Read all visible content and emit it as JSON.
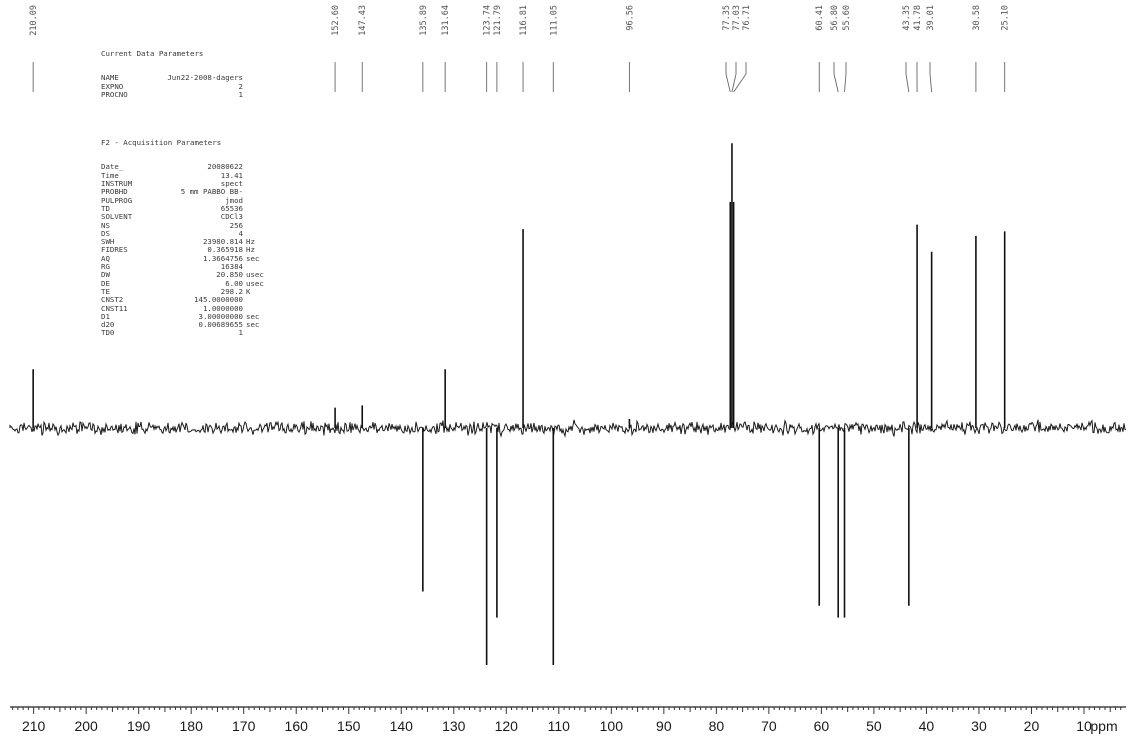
{
  "parameters": {
    "current_heading": "Current Data Parameters",
    "current": [
      {
        "key": "NAME",
        "value": "Jun22-2008-dagers",
        "unit": ""
      },
      {
        "key": "EXPNO",
        "value": "2",
        "unit": ""
      },
      {
        "key": "PROCNO",
        "value": "1",
        "unit": ""
      }
    ],
    "acq_heading": "F2 - Acquisition Parameters",
    "acquisition": [
      {
        "key": "Date_",
        "value": "20080622",
        "unit": ""
      },
      {
        "key": "Time",
        "value": "13.41",
        "unit": ""
      },
      {
        "key": "INSTRUM",
        "value": "spect",
        "unit": ""
      },
      {
        "key": "PROBHD",
        "value": "5 mm PABBO BB-",
        "unit": ""
      },
      {
        "key": "PULPROG",
        "value": "jmod",
        "unit": ""
      },
      {
        "key": "TD",
        "value": "65536",
        "unit": ""
      },
      {
        "key": "SOLVENT",
        "value": "CDCl3",
        "unit": ""
      },
      {
        "key": "NS",
        "value": "256",
        "unit": ""
      },
      {
        "key": "DS",
        "value": "4",
        "unit": ""
      },
      {
        "key": "SWH",
        "value": "23980.814",
        "unit": "Hz"
      },
      {
        "key": "FIDRES",
        "value": "0.365918",
        "unit": "Hz"
      },
      {
        "key": "AQ",
        "value": "1.3664756",
        "unit": "sec"
      },
      {
        "key": "RG",
        "value": "16384",
        "unit": ""
      },
      {
        "key": "DW",
        "value": "20.850",
        "unit": "usec"
      },
      {
        "key": "DE",
        "value": "6.00",
        "unit": "usec"
      },
      {
        "key": "TE",
        "value": "298.2",
        "unit": "K"
      },
      {
        "key": "CNST2",
        "value": "145.0000000",
        "unit": ""
      },
      {
        "key": "CNST11",
        "value": "1.0000000",
        "unit": ""
      },
      {
        "key": "D1",
        "value": "3.00000000",
        "unit": "sec"
      },
      {
        "key": "d20",
        "value": "0.00689655",
        "unit": "sec"
      },
      {
        "key": "TD0",
        "value": "1",
        "unit": ""
      }
    ]
  },
  "chart_data": {
    "type": "line",
    "title": "",
    "xlabel": "ppm",
    "ylabel": "",
    "x_reversed": true,
    "xlim": [
      214.5,
      2
    ],
    "ylim": [
      -1.0,
      1.26
    ],
    "tick_values": [
      210,
      200,
      190,
      180,
      170,
      160,
      150,
      140,
      130,
      120,
      110,
      100,
      90,
      80,
      70,
      60,
      50,
      40,
      30,
      20,
      10
    ],
    "tick_labels": [
      "210",
      "200",
      "190",
      "180",
      "170",
      "160",
      "150",
      "140",
      "130",
      "120",
      "110",
      "100",
      "90",
      "80",
      "70",
      "60",
      "50",
      "40",
      "30",
      "20",
      "10",
      "ppm"
    ],
    "peak_labels": [
      "210.09",
      "152.60",
      "147.43",
      "135.89",
      "131.64",
      "123.74",
      "121.79",
      "116.81",
      "111.05",
      "96.56",
      "77.35",
      "77.03",
      "76.71",
      "60.41",
      "56.80",
      "55.60",
      "43.35",
      "41.78",
      "39.01",
      "30.58",
      "25.10"
    ],
    "series": [
      {
        "values": [
          {
            "ppm": 210.09,
            "intensity": 0.26
          },
          {
            "ppm": 152.6,
            "intensity": 0.09
          },
          {
            "ppm": 147.43,
            "intensity": 0.1
          },
          {
            "ppm": 135.89,
            "intensity": -0.69
          },
          {
            "ppm": 131.64,
            "intensity": 0.26
          },
          {
            "ppm": 123.74,
            "intensity": -1.0
          },
          {
            "ppm": 121.79,
            "intensity": -0.8
          },
          {
            "ppm": 116.81,
            "intensity": 0.88
          },
          {
            "ppm": 111.05,
            "intensity": -1.0
          },
          {
            "ppm": 96.56,
            "intensity": 0.04
          },
          {
            "ppm": 77.35,
            "intensity": 1.0
          },
          {
            "ppm": 77.03,
            "intensity": 1.26
          },
          {
            "ppm": 76.71,
            "intensity": 1.0
          },
          {
            "ppm": 60.41,
            "intensity": -0.75
          },
          {
            "ppm": 56.8,
            "intensity": -0.8
          },
          {
            "ppm": 55.6,
            "intensity": -0.8
          },
          {
            "ppm": 43.35,
            "intensity": -0.75
          },
          {
            "ppm": 41.78,
            "intensity": 0.9
          },
          {
            "ppm": 39.01,
            "intensity": 0.78
          },
          {
            "ppm": 30.58,
            "intensity": 0.85
          },
          {
            "ppm": 25.1,
            "intensity": 0.87
          }
        ]
      }
    ],
    "grid": false
  }
}
